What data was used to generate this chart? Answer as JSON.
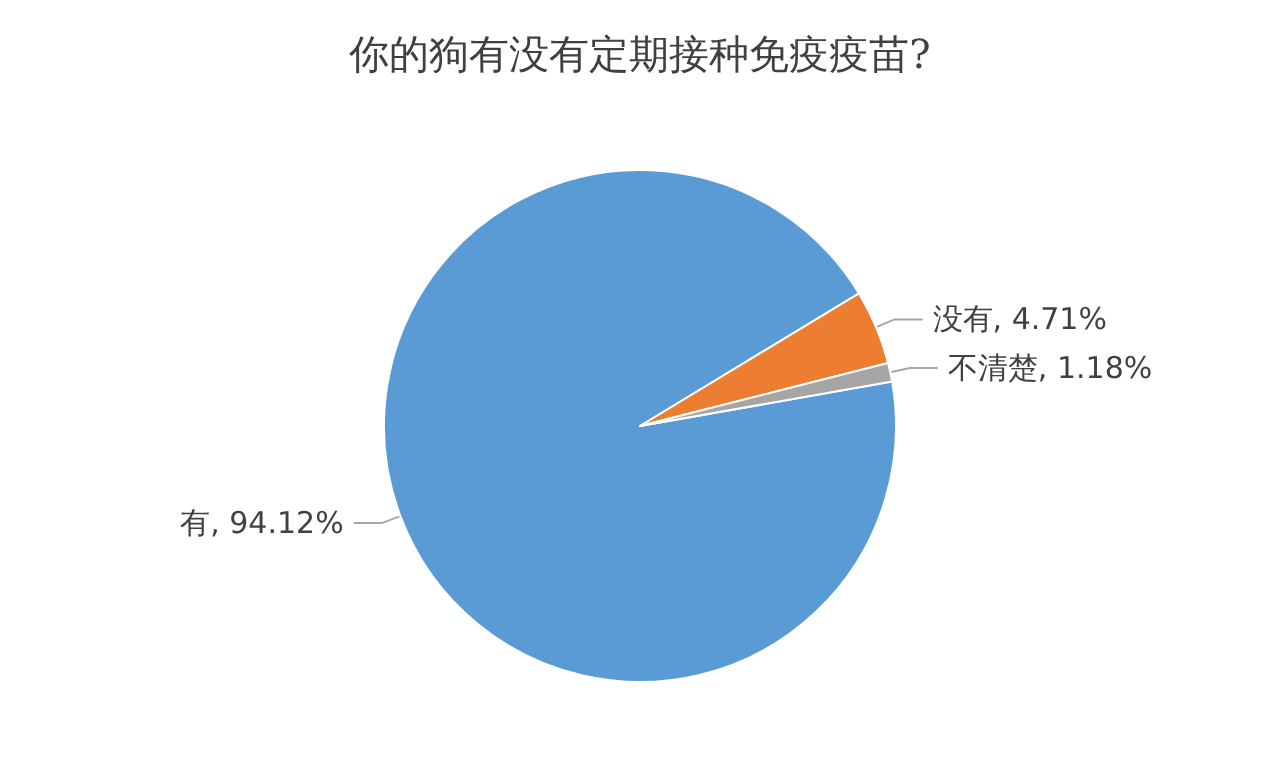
{
  "chart_data": {
    "type": "pie",
    "title": "你的狗有没有定期接种免疫疫苗?",
    "categories": [
      "有",
      "没有",
      "不清楚"
    ],
    "values": [
      94.12,
      4.71,
      1.18
    ],
    "colors": [
      "#5b9bd5",
      "#ed7d31",
      "#a5a5a5"
    ],
    "value_labels": [
      "94.12%",
      "4.71%",
      "1.18%"
    ],
    "legend": false
  }
}
